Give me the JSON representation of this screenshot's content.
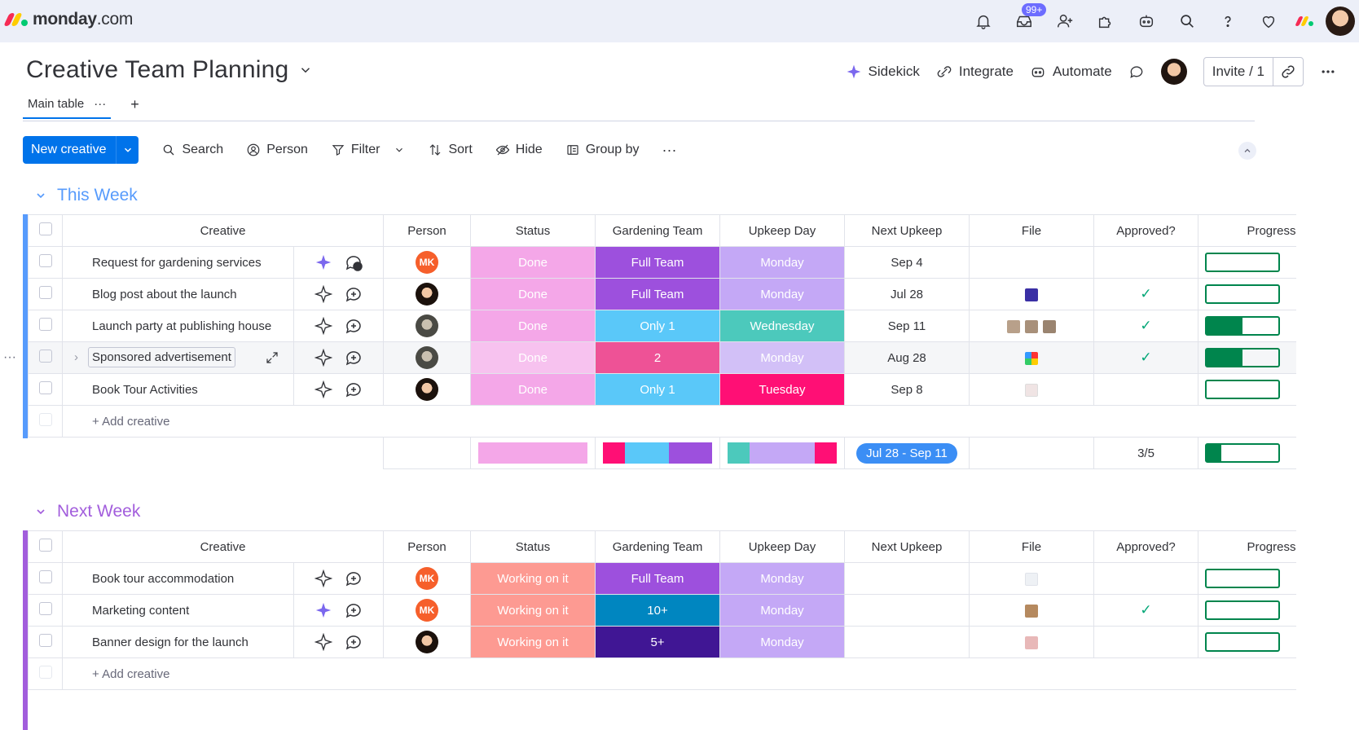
{
  "app": {
    "brand": "monday",
    "brand_suffix": ".com",
    "notifications_badge": "99+"
  },
  "board": {
    "title": "Creative Team Planning",
    "tab": "Main table",
    "tab_more": "···",
    "tab_add": "+"
  },
  "header": {
    "sidekick": "Sidekick",
    "integrate": "Integrate",
    "automate": "Automate",
    "invite": "Invite / 1"
  },
  "toolbar": {
    "new_item": "New creative",
    "search": "Search",
    "person": "Person",
    "filter": "Filter",
    "sort": "Sort",
    "hide": "Hide",
    "group_by": "Group by",
    "more": "···"
  },
  "columns": [
    "Creative",
    "Person",
    "Status",
    "Gardening Team",
    "Upkeep Day",
    "Next Upkeep",
    "File",
    "Approved?",
    "Progress"
  ],
  "groups": [
    {
      "title": "This Week",
      "color": "#579bfc",
      "add_label": "+ Add creative",
      "rows": [
        {
          "name": "Request for gardening services",
          "person": "MK",
          "status": "Done",
          "team": "Full Team",
          "day": "Monday",
          "next": "Sep 4",
          "approved": "",
          "progress": 0
        },
        {
          "name": "Blog post about the launch",
          "person": "",
          "status": "Done",
          "team": "Full Team",
          "day": "Monday",
          "next": "Jul 28",
          "approved": "✓",
          "progress": 0
        },
        {
          "name": "Launch party at publishing house",
          "person": "",
          "status": "Done",
          "team": "Only 1",
          "day": "Wednesday",
          "next": "Sep 11",
          "approved": "✓",
          "progress": 0.5
        },
        {
          "name": "Sponsored advertisement",
          "person": "",
          "status": "Done",
          "team": "2",
          "day": "Monday",
          "next": "Aug 28",
          "approved": "✓",
          "progress": 0.5
        },
        {
          "name": "Book Tour Activities",
          "person": "",
          "status": "Done",
          "team": "Only 1",
          "day": "Tuesday",
          "next": "Sep 8",
          "approved": "",
          "progress": 0
        }
      ],
      "summary": {
        "date_range": "Jul 28 - Sep 11",
        "approved": "3/5",
        "progress": 0.2
      }
    },
    {
      "title": "Next Week",
      "color": "#a25ddc",
      "add_label": "+ Add creative",
      "rows": [
        {
          "name": "Book tour accommodation",
          "person": "MK",
          "status": "Working on it",
          "team": "Full Team",
          "day": "Monday",
          "next": "",
          "approved": "",
          "progress": 0
        },
        {
          "name": "Marketing content",
          "person": "MK",
          "status": "Working on it",
          "team": "10+",
          "day": "Monday",
          "next": "",
          "approved": "✓",
          "progress": 0
        },
        {
          "name": "Banner design for the launch",
          "person": "",
          "status": "Working on it",
          "team": "5+",
          "day": "Monday",
          "next": "",
          "approved": "",
          "progress": 0
        }
      ]
    }
  ]
}
